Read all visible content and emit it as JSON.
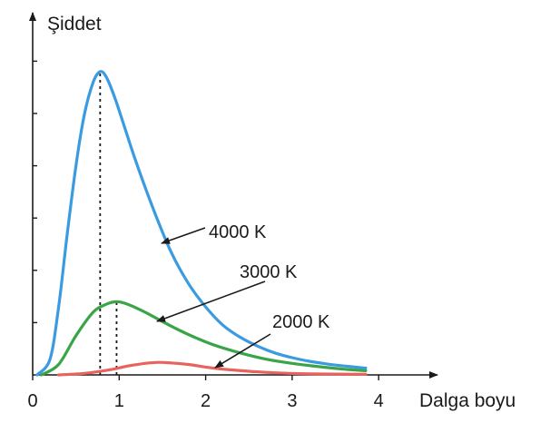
{
  "chart_data": {
    "type": "line",
    "ylabel": "Şiddet",
    "xlabel": "Dalga boyu",
    "x_ticks": [
      "0",
      "1",
      "2",
      "3",
      "4"
    ],
    "xlim": [
      0,
      4.4
    ],
    "ylim": [
      0,
      6.1
    ],
    "y_tick_count": 6,
    "peak_markers": "dotted vertical lines at peak wavelengths of 4000 K and 3000 K curves",
    "series": [
      {
        "name": "4000 K",
        "color": "#3a9be0",
        "label": "4000 K",
        "x": [
          0.05,
          0.2,
          0.3,
          0.4,
          0.5,
          0.6,
          0.7,
          0.78,
          0.85,
          0.95,
          1.05,
          1.2,
          1.4,
          1.6,
          1.8,
          2.0,
          2.2,
          2.4,
          2.6,
          2.8,
          3.0,
          3.2,
          3.4,
          3.6,
          3.85
        ],
        "y": [
          0.0,
          0.3,
          1.3,
          2.7,
          4.0,
          5.0,
          5.6,
          5.8,
          5.7,
          5.3,
          4.8,
          4.05,
          3.15,
          2.35,
          1.75,
          1.3,
          0.95,
          0.72,
          0.55,
          0.42,
          0.33,
          0.26,
          0.21,
          0.17,
          0.13
        ]
      },
      {
        "name": "3000 K",
        "color": "#3aa547",
        "label": "3000 K",
        "x": [
          0.1,
          0.3,
          0.5,
          0.7,
          0.85,
          0.97,
          1.1,
          1.3,
          1.5,
          1.7,
          1.9,
          2.1,
          2.4,
          2.7,
          3.0,
          3.3,
          3.6,
          3.85
        ],
        "y": [
          0.0,
          0.2,
          0.75,
          1.2,
          1.35,
          1.4,
          1.35,
          1.2,
          1.02,
          0.85,
          0.7,
          0.57,
          0.42,
          0.3,
          0.22,
          0.16,
          0.11,
          0.08
        ]
      },
      {
        "name": "2000 K",
        "color": "#e8625e",
        "label": "2000 K",
        "x": [
          0.3,
          0.6,
          0.9,
          1.1,
          1.3,
          1.45,
          1.6,
          1.8,
          2.0,
          2.2,
          2.5,
          2.8,
          3.2,
          3.85
        ],
        "y": [
          0.0,
          0.03,
          0.1,
          0.17,
          0.22,
          0.24,
          0.23,
          0.2,
          0.15,
          0.11,
          0.07,
          0.04,
          0.02,
          0.01
        ]
      }
    ],
    "peak_lines_x": [
      0.78,
      0.97
    ]
  }
}
